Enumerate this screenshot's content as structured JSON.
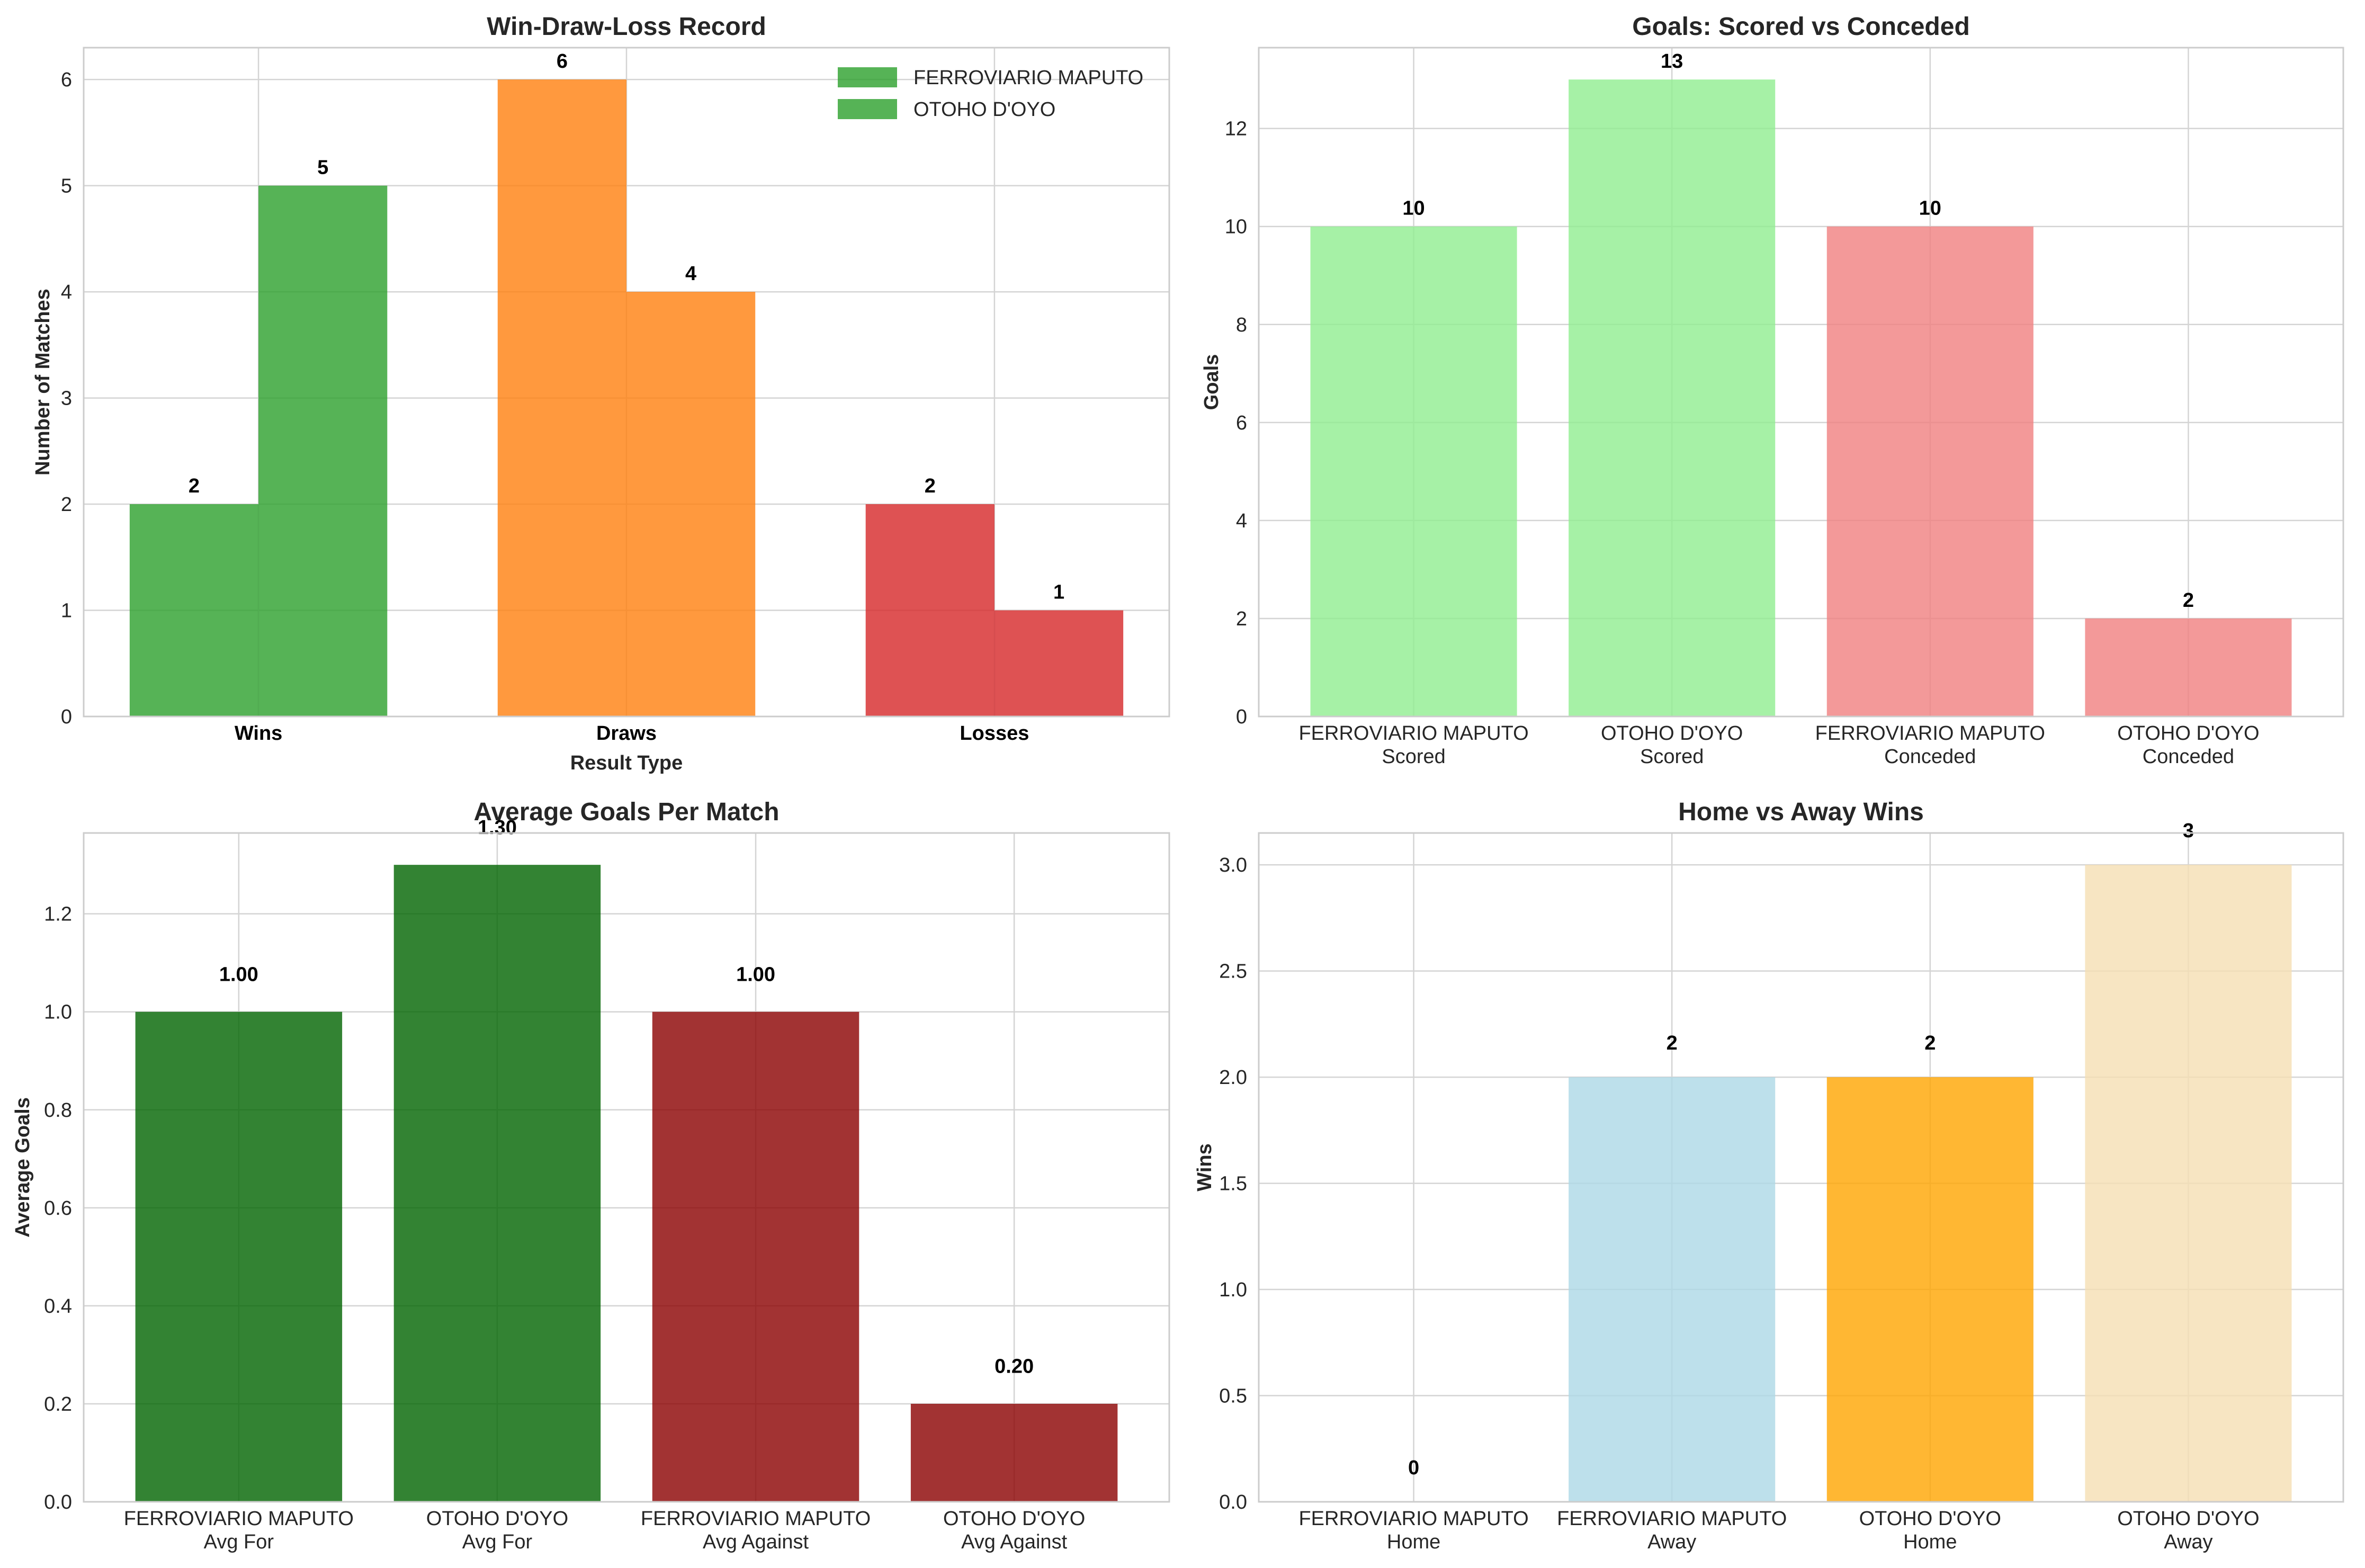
{
  "chart_data": [
    {
      "type": "bar",
      "title": "Win-Draw-Loss Record",
      "xlabel": "Result Type",
      "ylabel": "Number of Matches",
      "categories": [
        "Wins",
        "Draws",
        "Losses"
      ],
      "ylim": [
        0,
        6.3
      ],
      "yticks": [
        "0",
        "1",
        "2",
        "3",
        "4",
        "5",
        "6"
      ],
      "series": [
        {
          "name": "FERROVIARIO MAPUTO",
          "values": [
            2,
            6,
            2
          ]
        },
        {
          "name": "OTOHO D'OYO",
          "values": [
            5,
            4,
            1
          ]
        }
      ],
      "category_colors": [
        "#2ca02c",
        "#ff7f0e",
        "#d62728"
      ],
      "data_labels": [
        [
          "2",
          "6",
          "2"
        ],
        [
          "5",
          "4",
          "1"
        ]
      ],
      "legend": "top-right",
      "legend_color": "#2ca02c",
      "grid": true
    },
    {
      "type": "bar",
      "title": "Goals: Scored vs Conceded",
      "xlabel": "",
      "ylabel": "Goals",
      "categories": [
        [
          "FERROVIARIO MAPUTO",
          "Scored"
        ],
        [
          "OTOHO D'OYO",
          "Scored"
        ],
        [
          "FERROVIARIO MAPUTO",
          "Conceded"
        ],
        [
          "OTOHO D'OYO",
          "Conceded"
        ]
      ],
      "values": [
        10,
        13,
        10,
        2
      ],
      "data_labels": [
        "10",
        "13",
        "10",
        "2"
      ],
      "colors": [
        "#90ee90",
        "#90ee90",
        "#f08080",
        "#f08080"
      ],
      "ylim": [
        0,
        13.65
      ],
      "yticks": [
        "0",
        "2",
        "4",
        "6",
        "8",
        "10",
        "12"
      ],
      "grid": true
    },
    {
      "type": "bar",
      "title": "Average Goals Per Match",
      "xlabel": "",
      "ylabel": "Average Goals",
      "categories": [
        [
          "FERROVIARIO MAPUTO",
          "Avg For"
        ],
        [
          "OTOHO D'OYO",
          "Avg For"
        ],
        [
          "FERROVIARIO MAPUTO",
          "Avg Against"
        ],
        [
          "OTOHO D'OYO",
          "Avg Against"
        ]
      ],
      "values": [
        1.0,
        1.3,
        1.0,
        0.2
      ],
      "data_labels": [
        "1.00",
        "1.30",
        "1.00",
        "0.20"
      ],
      "colors": [
        "#006400",
        "#006400",
        "#8b0000",
        "#8b0000"
      ],
      "ylim": [
        0,
        1.365
      ],
      "yticks": [
        "0.0",
        "0.2",
        "0.4",
        "0.6",
        "0.8",
        "1.0",
        "1.2"
      ],
      "grid": true
    },
    {
      "type": "bar",
      "title": "Home vs Away Wins",
      "xlabel": "",
      "ylabel": "Wins",
      "categories": [
        [
          "FERROVIARIO MAPUTO",
          "Home"
        ],
        [
          "FERROVIARIO MAPUTO",
          "Away"
        ],
        [
          "OTOHO D'OYO",
          "Home"
        ],
        [
          "OTOHO D'OYO",
          "Away"
        ]
      ],
      "values": [
        0,
        2,
        2,
        3
      ],
      "data_labels": [
        "0",
        "2",
        "2",
        "3"
      ],
      "colors": [
        "#b0dceb",
        "#add8e6",
        "#ffa500",
        "#f5deb3"
      ],
      "ylim": [
        0,
        3.15
      ],
      "yticks": [
        "0.0",
        "0.5",
        "1.0",
        "1.5",
        "2.0",
        "2.5",
        "3.0"
      ],
      "grid": true
    }
  ]
}
